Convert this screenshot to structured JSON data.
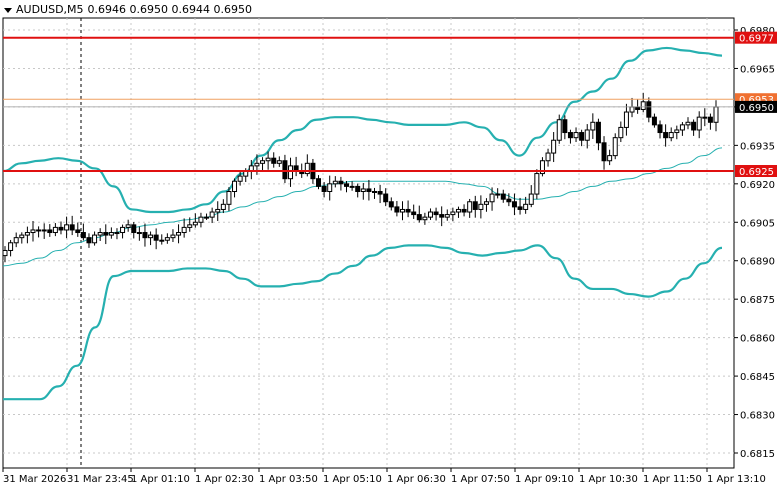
{
  "header": {
    "symbol": "AUDUSD,M5",
    "ohlc": "0.6946 0.6950 0.6944 0.6950"
  },
  "colors": {
    "background": "#ffffff",
    "grid": "#c8c8c8",
    "candle": "#000000",
    "bollinger": "#26b0b0",
    "level_line": "#e01010",
    "orange_line": "#f0a060",
    "price_tag": "#e01010",
    "bid_tag": "#000000"
  },
  "chart_data": {
    "type": "candlestick",
    "symbol": "AUDUSD",
    "timeframe": "M5",
    "ylim": [
      0.6815,
      0.698
    ],
    "y_ticks": [
      "0.6980",
      "0.6965",
      "0.6950",
      "0.6935",
      "0.6920",
      "0.6905",
      "0.6890",
      "0.6875",
      "0.6860",
      "0.6845",
      "0.6830",
      "0.6815"
    ],
    "x_ticks": [
      "31 Mar 2026",
      "31 Mar 23:45",
      "1 Apr 01:10",
      "1 Apr 02:30",
      "1 Apr 03:50",
      "1 Apr 05:10",
      "1 Apr 06:30",
      "1 Apr 07:50",
      "1 Apr 09:10",
      "1 Apr 10:30",
      "1 Apr 11:50",
      "1 Apr 13:10"
    ],
    "grid": true,
    "period_separator_label": "31 Mar 23:45",
    "levels": [
      {
        "label": "0.6977",
        "value": 0.6977,
        "style": "red-thick"
      },
      {
        "label": "0.6925",
        "value": 0.6925,
        "style": "red-thick"
      },
      {
        "label": "0.6953",
        "value": 0.6953,
        "style": "orange-thin"
      }
    ],
    "current_price": {
      "label": "0.6950",
      "value": 0.695
    },
    "candles_close": [
      0.6894,
      0.6897,
      0.6899,
      0.69,
      0.6901,
      0.6902,
      0.6902,
      0.6902,
      0.6901,
      0.6903,
      0.6902,
      0.6904,
      0.6902,
      0.6901,
      0.6899,
      0.6897,
      0.69,
      0.6901,
      0.69,
      0.6901,
      0.6901,
      0.6903,
      0.6904,
      0.6901,
      0.6901,
      0.6899,
      0.69,
      0.6898,
      0.6898,
      0.6899,
      0.69,
      0.6901,
      0.6903,
      0.6904,
      0.6905,
      0.6907,
      0.6907,
      0.6909,
      0.691,
      0.6912,
      0.6917,
      0.6921,
      0.6923,
      0.6925,
      0.6927,
      0.6928,
      0.6929,
      0.693,
      0.6928,
      0.6929,
      0.6922,
      0.6927,
      0.6925,
      0.6924,
      0.6928,
      0.6922,
      0.6919,
      0.6917,
      0.692,
      0.6921,
      0.692,
      0.6919,
      0.6919,
      0.6917,
      0.6918,
      0.6917,
      0.6917,
      0.6916,
      0.6913,
      0.6911,
      0.6909,
      0.691,
      0.6909,
      0.6908,
      0.6906,
      0.6907,
      0.6909,
      0.6908,
      0.6907,
      0.6908,
      0.6909,
      0.691,
      0.6909,
      0.6913,
      0.691,
      0.6912,
      0.6913,
      0.6916,
      0.6916,
      0.6914,
      0.6913,
      0.6911,
      0.691,
      0.6912,
      0.6916,
      0.6924,
      0.6929,
      0.6932,
      0.6937,
      0.6945,
      0.694,
      0.6938,
      0.694,
      0.6937,
      0.6941,
      0.6944,
      0.6936,
      0.6929,
      0.6931,
      0.6938,
      0.6942,
      0.6948,
      0.695,
      0.6949,
      0.6952,
      0.6946,
      0.6943,
      0.694,
      0.6938,
      0.694,
      0.6941,
      0.6943,
      0.6944,
      0.6941,
      0.6946,
      0.6946,
      0.6944,
      0.695
    ],
    "bb_upper": [
      0.6925,
      0.6928,
      0.6929,
      0.693,
      0.6929,
      0.6926,
      0.6919,
      0.691,
      0.6909,
      0.6909,
      0.691,
      0.6912,
      0.6917,
      0.6924,
      0.6931,
      0.6937,
      0.6941,
      0.6945,
      0.6946,
      0.6946,
      0.6945,
      0.6944,
      0.6943,
      0.6943,
      0.6943,
      0.6944,
      0.6942,
      0.6937,
      0.6931,
      0.6938,
      0.6944,
      0.6952,
      0.6956,
      0.6961,
      0.6968,
      0.6972,
      0.6973,
      0.6972,
      0.6971,
      0.697
    ],
    "bb_mid": [
      0.6888,
      0.6889,
      0.6891,
      0.6894,
      0.6897,
      0.6899,
      0.6901,
      0.6903,
      0.6904,
      0.6905,
      0.6906,
      0.6907,
      0.6909,
      0.6911,
      0.6913,
      0.6915,
      0.6917,
      0.6919,
      0.692,
      0.6921,
      0.6921,
      0.6921,
      0.6921,
      0.6921,
      0.6921,
      0.692,
      0.6919,
      0.6916,
      0.6914,
      0.6914,
      0.6915,
      0.6917,
      0.6919,
      0.6921,
      0.6922,
      0.6924,
      0.6926,
      0.6928,
      0.6931,
      0.6934
    ],
    "bb_lower": [
      0.6836,
      0.6836,
      0.6836,
      0.6841,
      0.6849,
      0.6864,
      0.6884,
      0.6886,
      0.6886,
      0.6886,
      0.6887,
      0.6887,
      0.6886,
      0.6883,
      0.688,
      0.688,
      0.6881,
      0.6882,
      0.6885,
      0.6888,
      0.6892,
      0.6895,
      0.6896,
      0.6896,
      0.6895,
      0.6893,
      0.6892,
      0.6893,
      0.6894,
      0.6896,
      0.6891,
      0.6883,
      0.6879,
      0.6879,
      0.6877,
      0.6876,
      0.6878,
      0.6883,
      0.6889,
      0.6895
    ]
  }
}
